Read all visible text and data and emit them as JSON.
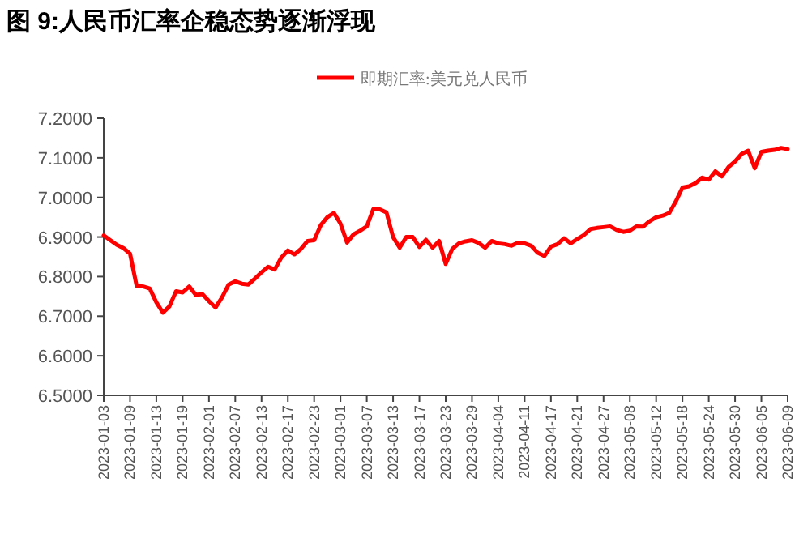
{
  "chart_data": {
    "type": "line",
    "title": "图 9:人民币汇率企稳态势逐渐浮现",
    "categories": [
      "2023-01-03",
      null,
      null,
      null,
      "2023-01-09",
      null,
      null,
      null,
      "2023-01-13",
      null,
      null,
      null,
      "2023-01-19",
      null,
      null,
      null,
      "2023-02-01",
      null,
      null,
      null,
      "2023-02-07",
      null,
      null,
      null,
      "2023-02-13",
      null,
      null,
      null,
      "2023-02-17",
      null,
      null,
      null,
      "2023-02-23",
      null,
      null,
      null,
      "2023-03-01",
      null,
      null,
      null,
      "2023-03-07",
      null,
      null,
      null,
      "2023-03-13",
      null,
      null,
      null,
      "2023-03-17",
      null,
      null,
      null,
      "2023-03-23",
      null,
      null,
      null,
      "2023-03-29",
      null,
      null,
      null,
      "2023-04-04",
      null,
      null,
      null,
      "2023-04-11",
      null,
      null,
      null,
      "2023-04-17",
      null,
      null,
      null,
      "2023-04-21",
      null,
      null,
      null,
      "2023-04-27",
      null,
      null,
      null,
      "2023-05-08",
      null,
      null,
      null,
      "2023-05-12",
      null,
      null,
      null,
      "2023-05-18",
      null,
      null,
      null,
      "2023-05-24",
      null,
      null,
      null,
      "2023-05-30",
      null,
      null,
      null,
      "2023-06-05",
      null,
      null,
      null,
      "2023-06-09"
    ],
    "series": [
      {
        "name": "即期汇率:美元兑人民币",
        "color": "#ff0000",
        "values": [
          6.904,
          6.892,
          6.88,
          6.872,
          6.858,
          6.777,
          6.775,
          6.77,
          6.735,
          6.709,
          6.725,
          6.763,
          6.76,
          6.775,
          6.754,
          6.756,
          6.738,
          6.722,
          6.748,
          6.78,
          6.788,
          6.782,
          6.78,
          6.795,
          6.811,
          6.825,
          6.818,
          6.848,
          6.866,
          6.856,
          6.87,
          6.89,
          6.892,
          6.93,
          6.95,
          6.961,
          6.934,
          6.886,
          6.907,
          6.916,
          6.927,
          6.971,
          6.97,
          6.962,
          6.9,
          6.873,
          6.9,
          6.9,
          6.875,
          6.893,
          6.873,
          6.89,
          6.832,
          6.87,
          6.884,
          6.889,
          6.892,
          6.885,
          6.873,
          6.89,
          6.884,
          6.882,
          6.878,
          6.886,
          6.884,
          6.878,
          6.86,
          6.852,
          6.876,
          6.882,
          6.897,
          6.884,
          6.895,
          6.905,
          6.92,
          6.923,
          6.925,
          6.927,
          6.918,
          6.913,
          6.916,
          6.927,
          6.926,
          6.94,
          6.95,
          6.954,
          6.961,
          6.99,
          7.025,
          7.028,
          7.036,
          7.05,
          7.045,
          7.066,
          7.053,
          7.077,
          7.091,
          7.11,
          7.118,
          7.074,
          7.115,
          7.118,
          7.12,
          7.125,
          7.122
        ]
      }
    ],
    "ylim": [
      6.5,
      7.2
    ],
    "yticks": [
      {
        "value": 6.5,
        "label": "6.5000"
      },
      {
        "value": 6.6,
        "label": "6.6000"
      },
      {
        "value": 6.7,
        "label": "6.7000"
      },
      {
        "value": 6.8,
        "label": "6.8000"
      },
      {
        "value": 6.9,
        "label": "6.9000"
      },
      {
        "value": 7.0,
        "label": "7.0000"
      },
      {
        "value": 7.1,
        "label": "7.1000"
      },
      {
        "value": 7.2,
        "label": "7.2000"
      }
    ],
    "legend": "top",
    "marker": "none",
    "line_style": "solid",
    "grid": false
  }
}
